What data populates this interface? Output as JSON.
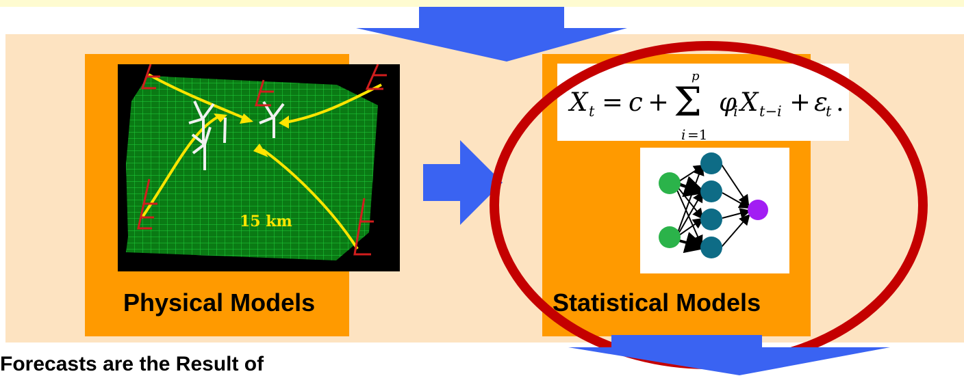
{
  "equation": "X_t = c + Σ_{i=1}^{p} φ_i X_{t-i} + ε_t.",
  "terrain": {
    "scale_label": "15 km"
  },
  "labels": {
    "physical": "Physical Models",
    "statistical": "Statistical Models",
    "bottom": "Forecasts are the Result of"
  },
  "colors": {
    "arrow": "#3a63f2",
    "orange_box": "#ff9a00",
    "panel": "#fde3c1",
    "top_strip": "#fefbd0",
    "ellipse": "#c40000",
    "terrain": "#0a7a14",
    "nn_green": "#2bb34a",
    "nn_teal": "#0e6c86",
    "nn_purple": "#a21ef3"
  }
}
